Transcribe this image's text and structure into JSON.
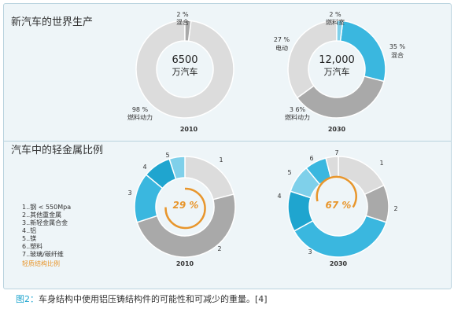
{
  "section_titles": {
    "top": "新汽车的世界生产",
    "bottom": "汽车中的轻金属比例"
  },
  "colors": {
    "grey_light": "#dcdcdc",
    "grey_dark": "#a9a9a9",
    "cyan_light": "#7fd0ea",
    "cyan": "#3ab7df",
    "cyan_dark": "#1fa5cf",
    "orange": "#e8962c"
  },
  "chart_data": [
    {
      "type": "pie",
      "variant": "donut",
      "title": "新汽车的世界生产",
      "year": "2010",
      "center_value": "6500",
      "center_unit": "万汽车",
      "slices": [
        {
          "label": "燃料动力",
          "value": 98,
          "pct_text": "98 %",
          "color": "#dcdcdc"
        },
        {
          "label": "混合",
          "value": 2,
          "pct_text": "2 %",
          "color": "#a9a9a9"
        }
      ]
    },
    {
      "type": "pie",
      "variant": "donut",
      "title": "新汽车的世界生产",
      "year": "2030",
      "center_value": "12,000",
      "center_unit": "万汽车",
      "slices": [
        {
          "label": "混合",
          "value": 35,
          "pct_text": "35 %",
          "color": "#dcdcdc"
        },
        {
          "label": "燃料动力",
          "value": 36,
          "pct_text": "3 6%",
          "color": "#a9a9a9"
        },
        {
          "label": "电动",
          "value": 27,
          "pct_text": "27 %",
          "color": "#3ab7df"
        },
        {
          "label": "燃料室",
          "value": 2,
          "pct_text": "2 %",
          "color": "#7fd0ea"
        }
      ]
    },
    {
      "type": "pie",
      "variant": "donut",
      "title": "汽车中的轻金属比例",
      "year": "2010",
      "center_pct": "29 %",
      "slices": [
        {
          "label": "1",
          "value": 21,
          "color": "#dcdcdc"
        },
        {
          "label": "2",
          "value": 49,
          "color": "#a9a9a9"
        },
        {
          "label": "3",
          "value": 16,
          "color": "#3ab7df"
        },
        {
          "label": "4",
          "value": 9,
          "color": "#1fa5cf"
        },
        {
          "label": "5",
          "value": 5,
          "color": "#7fd0ea"
        }
      ]
    },
    {
      "type": "pie",
      "variant": "donut",
      "title": "汽车中的轻金属比例",
      "year": "2030",
      "center_pct": "67 %",
      "slices": [
        {
          "label": "1",
          "value": 18,
          "color": "#dcdcdc"
        },
        {
          "label": "2",
          "value": 12,
          "color": "#a9a9a9"
        },
        {
          "label": "3",
          "value": 37,
          "color": "#3ab7df"
        },
        {
          "label": "4",
          "value": 13,
          "color": "#1fa5cf"
        },
        {
          "label": "5",
          "value": 9,
          "color": "#7fd0ea"
        },
        {
          "label": "6",
          "value": 7,
          "color": "#3ab7df"
        },
        {
          "label": "7",
          "value": 4,
          "color": "#dcdcdc"
        }
      ]
    }
  ],
  "legend": {
    "items": [
      "1..钢 < 550Mpa",
      "2..其他重金属",
      "3..新轻金属合金",
      "4..铝",
      "5..镁",
      "6..塑料",
      "7..玻璃/碳纤维"
    ],
    "highlight": "轻质结构比例"
  },
  "caption": {
    "label": "图2：",
    "text": "车身结构中使用铝压铸结构件的可能性和可减少的重量。[4]"
  }
}
